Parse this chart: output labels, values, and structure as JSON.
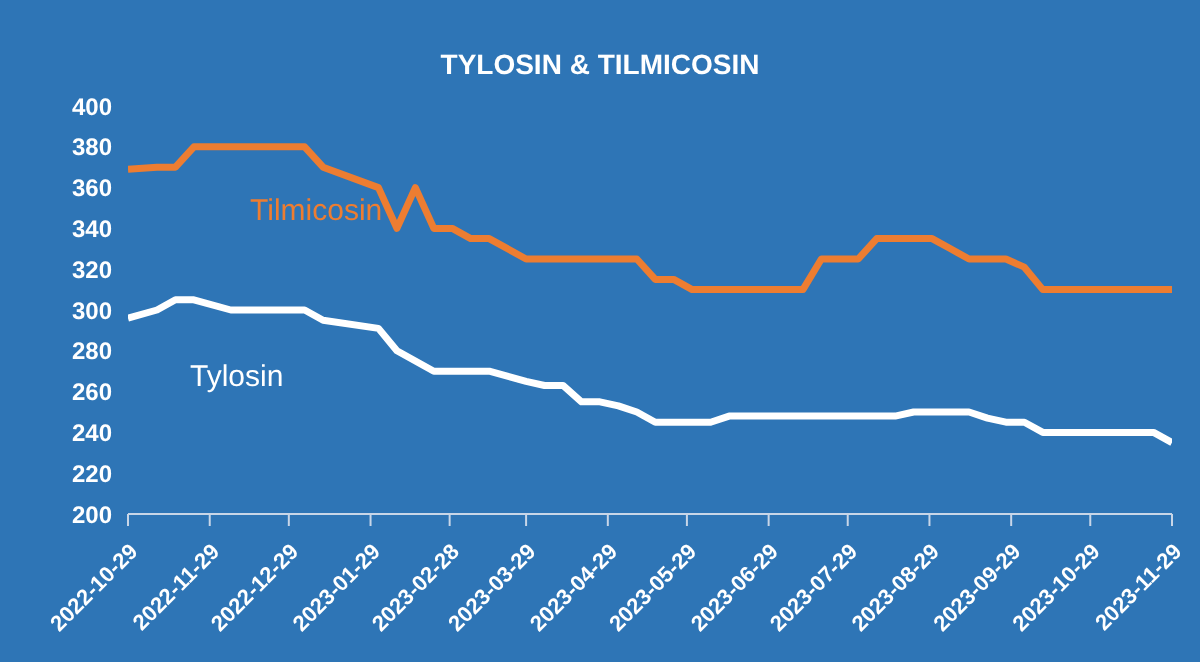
{
  "chart_data": {
    "type": "line",
    "title": "TYLOSIN & TILMICOSIN",
    "x": [
      "2022-10-29",
      "2022-11-09",
      "2022-11-16",
      "2022-11-23",
      "2022-12-07",
      "2022-12-14",
      "2023-01-04",
      "2023-01-11",
      "2023-02-01",
      "2023-02-08",
      "2023-02-15",
      "2023-02-22",
      "2023-03-01",
      "2023-03-08",
      "2023-03-15",
      "2023-03-29",
      "2023-04-05",
      "2023-04-12",
      "2023-04-19",
      "2023-04-26",
      "2023-05-03",
      "2023-05-10",
      "2023-05-17",
      "2023-05-24",
      "2023-05-31",
      "2023-06-07",
      "2023-06-14",
      "2023-06-21",
      "2023-06-28",
      "2023-07-05",
      "2023-07-12",
      "2023-07-19",
      "2023-07-26",
      "2023-08-02",
      "2023-08-09",
      "2023-08-16",
      "2023-08-23",
      "2023-08-30",
      "2023-09-06",
      "2023-09-13",
      "2023-09-20",
      "2023-09-27",
      "2023-10-04",
      "2023-10-11",
      "2023-10-18",
      "2023-10-25",
      "2023-11-01",
      "2023-11-08",
      "2023-11-15",
      "2023-11-22",
      "2023-11-29"
    ],
    "series": [
      {
        "name": "Tilmicosin",
        "color": "#ed7d31",
        "values": [
          369,
          370,
          370,
          380,
          380,
          380,
          380,
          370,
          360,
          340,
          360,
          340,
          340,
          335,
          335,
          325,
          325,
          325,
          325,
          325,
          325,
          325,
          315,
          315,
          310,
          310,
          310,
          310,
          310,
          310,
          310,
          325,
          325,
          325,
          335,
          335,
          335,
          335,
          330,
          325,
          325,
          325,
          321,
          310,
          310,
          310,
          310,
          310,
          310,
          310,
          310
        ]
      },
      {
        "name": "Tylosin",
        "color": "#ffffff",
        "values": [
          296,
          300,
          305,
          305,
          300,
          300,
          300,
          295,
          291,
          280,
          275,
          270,
          270,
          270,
          270,
          265,
          263,
          263,
          255,
          255,
          253,
          250,
          245,
          245,
          245,
          245,
          248,
          248,
          248,
          248,
          248,
          248,
          248,
          248,
          248,
          248,
          250,
          250,
          250,
          250,
          247,
          245,
          245,
          240,
          240,
          240,
          240,
          240,
          240,
          240,
          235
        ]
      }
    ],
    "xlim": [
      "2022-10-29",
      "2023-11-29"
    ],
    "xticks": [
      "2022-10-29",
      "2022-11-29",
      "2022-12-29",
      "2023-01-29",
      "2023-02-28",
      "2023-03-29",
      "2023-04-29",
      "2023-05-29",
      "2023-06-29",
      "2023-07-29",
      "2023-08-29",
      "2023-09-29",
      "2023-10-29",
      "2023-11-29"
    ],
    "ylim": [
      200,
      400
    ],
    "yticks": [
      200,
      220,
      240,
      260,
      280,
      300,
      320,
      340,
      360,
      380,
      400
    ],
    "grid": false,
    "legend": false,
    "marker": "none",
    "line_style": "solid"
  }
}
